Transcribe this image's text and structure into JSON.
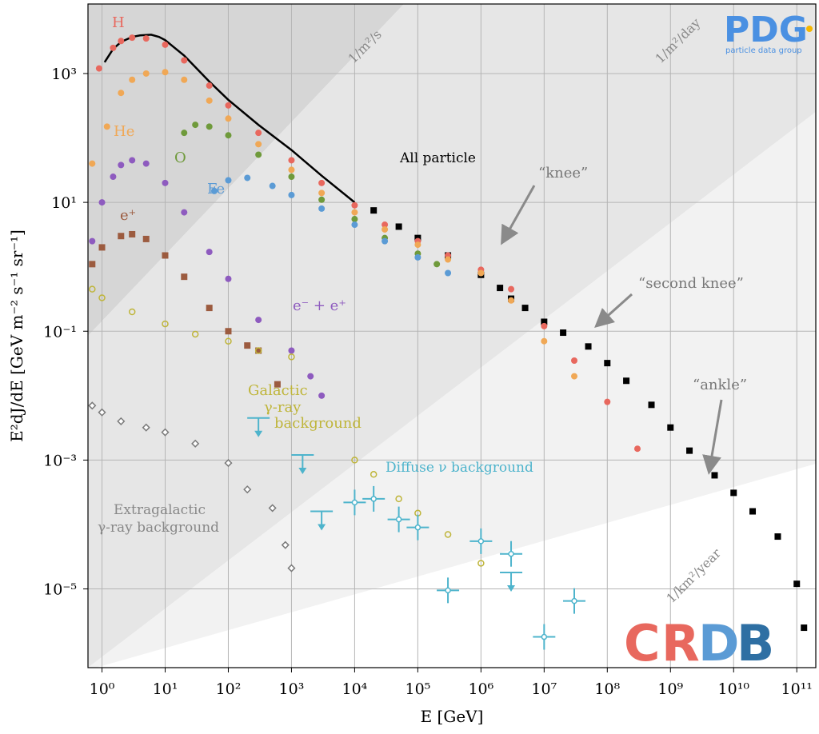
{
  "chart_data": {
    "type": "scatter",
    "xlabel": "E [GeV]",
    "ylabel": "E²dJ/dE [GeV m⁻² s⁻¹ sr⁻¹]",
    "xscale": "log",
    "yscale": "log",
    "xlim": [
      0.6,
      200000000000.0
    ],
    "ylim": [
      6e-07,
      12000
    ],
    "grid": true,
    "x_ticks": [
      {
        "v": 1,
        "label": "10⁰"
      },
      {
        "v": 10,
        "label": "10¹"
      },
      {
        "v": 100,
        "label": "10²"
      },
      {
        "v": 1000,
        "label": "10³"
      },
      {
        "v": 10000,
        "label": "10⁴"
      },
      {
        "v": 100000,
        "label": "10⁵"
      },
      {
        "v": 1000000,
        "label": "10⁶"
      },
      {
        "v": 10000000,
        "label": "10⁷"
      },
      {
        "v": 100000000,
        "label": "10⁸"
      },
      {
        "v": 1000000000,
        "label": "10⁹"
      },
      {
        "v": 10000000000,
        "label": "10¹⁰"
      },
      {
        "v": 100000000000,
        "label": "10¹¹"
      }
    ],
    "y_ticks": [
      {
        "v": 1000,
        "label": "10³"
      },
      {
        "v": 10,
        "label": "10¹"
      },
      {
        "v": 0.1,
        "label": "10⁻¹"
      },
      {
        "v": 0.001,
        "label": "10⁻³"
      },
      {
        "v": 1e-05,
        "label": "10⁻⁵"
      }
    ],
    "flux_bands": [
      {
        "label": "1/m²/s",
        "color": "#d6d6d6",
        "label_at": [
          12000,
          1200
        ]
      },
      {
        "label": "1/m²/day",
        "color": "#e6e6e6",
        "label_at": [
          2500000000.0,
          1400
        ]
      },
      {
        "label": "1/km²/year",
        "color": "#f2f2f2",
        "label_at": [
          30000000000.0,
          1e-05
        ]
      }
    ],
    "series": [
      {
        "name": "All particle",
        "color": "#000000",
        "marker": "square",
        "line": [
          [
            1.1,
            1500
          ],
          [
            1.5,
            2400
          ],
          [
            2,
            3100
          ],
          [
            3,
            3700
          ],
          [
            4,
            3900
          ],
          [
            6,
            4000
          ],
          [
            8,
            3700
          ],
          [
            10,
            3300
          ],
          [
            20,
            1900
          ],
          [
            50,
            750
          ],
          [
            100,
            390
          ],
          [
            300,
            160
          ],
          [
            1000,
            65
          ],
          [
            3000,
            26
          ],
          [
            10000,
            10
          ]
        ],
        "points": [
          [
            20000,
            7.5
          ],
          [
            50000,
            4.2
          ],
          [
            100000,
            2.8
          ],
          [
            300000,
            1.5
          ],
          [
            1000000,
            0.75
          ],
          [
            2000000,
            0.47
          ],
          [
            3000000,
            0.32
          ],
          [
            5000000,
            0.23
          ],
          [
            10000000,
            0.14
          ],
          [
            20000000,
            0.095
          ],
          [
            50000000,
            0.058
          ],
          [
            100000000,
            0.032
          ],
          [
            200000000,
            0.017
          ],
          [
            500000000,
            0.0072
          ],
          [
            1000000000,
            0.0032
          ],
          [
            2000000000,
            0.0014
          ],
          [
            5000000000,
            0.00058
          ],
          [
            10000000000,
            0.00031
          ],
          [
            20000000000,
            0.00016
          ],
          [
            50000000000,
            6.5e-05
          ],
          [
            100000000000,
            1.2e-05
          ],
          [
            130000000000,
            2.5e-06
          ]
        ]
      },
      {
        "name": "H",
        "color": "#e8685e",
        "marker": "circle",
        "points": [
          [
            0.9,
            1200
          ],
          [
            1.5,
            2500
          ],
          [
            2,
            3200
          ],
          [
            3,
            3600
          ],
          [
            5,
            3500
          ],
          [
            10,
            2800
          ],
          [
            20,
            1600
          ],
          [
            50,
            650
          ],
          [
            100,
            320
          ],
          [
            300,
            120
          ],
          [
            1000,
            45
          ],
          [
            3000,
            20
          ],
          [
            10000,
            9
          ],
          [
            30000,
            4.5
          ],
          [
            100000,
            2.5
          ],
          [
            300000,
            1.5
          ],
          [
            1000000,
            0.9
          ],
          [
            3000000,
            0.45
          ],
          [
            10000000,
            0.12
          ],
          [
            30000000,
            0.035
          ],
          [
            100000000,
            0.008
          ],
          [
            300000000,
            0.0015
          ]
        ]
      },
      {
        "name": "He",
        "color": "#f0a856",
        "marker": "circle",
        "points": [
          [
            0.7,
            40
          ],
          [
            1.2,
            150
          ],
          [
            2,
            500
          ],
          [
            3,
            800
          ],
          [
            5,
            1000
          ],
          [
            10,
            1050
          ],
          [
            20,
            800
          ],
          [
            50,
            380
          ],
          [
            100,
            200
          ],
          [
            300,
            80
          ],
          [
            1000,
            32
          ],
          [
            3000,
            14
          ],
          [
            10000,
            7
          ],
          [
            30000,
            3.8
          ],
          [
            100000,
            2.2
          ],
          [
            300000,
            1.3
          ],
          [
            1000000,
            0.8
          ],
          [
            3000000,
            0.3
          ],
          [
            10000000,
            0.07
          ],
          [
            30000000,
            0.02
          ]
        ]
      },
      {
        "name": "O",
        "color": "#6f9a3b",
        "marker": "circle",
        "points": [
          [
            20,
            120
          ],
          [
            30,
            160
          ],
          [
            50,
            150
          ],
          [
            100,
            110
          ],
          [
            300,
            55
          ],
          [
            1000,
            25
          ],
          [
            3000,
            11
          ],
          [
            10000,
            5.5
          ],
          [
            30000,
            2.8
          ],
          [
            100000,
            1.6
          ],
          [
            200000,
            1.1
          ]
        ]
      },
      {
        "name": "Fe",
        "color": "#5b9bd5",
        "marker": "circle",
        "points": [
          [
            60,
            15
          ],
          [
            100,
            22
          ],
          [
            200,
            24
          ],
          [
            500,
            18
          ],
          [
            1000,
            13
          ],
          [
            3000,
            8
          ],
          [
            10000,
            4.5
          ],
          [
            30000,
            2.5
          ],
          [
            100000,
            1.4
          ],
          [
            300000,
            0.8
          ]
        ]
      },
      {
        "name": "e⁻ + e⁺",
        "color": "#8e5bbf",
        "marker": "circle",
        "points": [
          [
            0.7,
            2.5
          ],
          [
            1,
            10
          ],
          [
            1.5,
            25
          ],
          [
            2,
            38
          ],
          [
            3,
            45
          ],
          [
            5,
            40
          ],
          [
            10,
            20
          ],
          [
            20,
            7
          ],
          [
            50,
            1.7
          ],
          [
            100,
            0.65
          ],
          [
            300,
            0.15
          ],
          [
            1000,
            0.05
          ],
          [
            2000,
            0.02
          ],
          [
            3000,
            0.01
          ]
        ]
      },
      {
        "name": "e⁺",
        "color": "#9c5b3f",
        "marker": "square",
        "points": [
          [
            0.7,
            1.1
          ],
          [
            1,
            2
          ],
          [
            2,
            3
          ],
          [
            3,
            3.2
          ],
          [
            5,
            2.7
          ],
          [
            10,
            1.5
          ],
          [
            20,
            0.7
          ],
          [
            50,
            0.23
          ],
          [
            100,
            0.1
          ],
          [
            200,
            0.06
          ],
          [
            300,
            0.05
          ],
          [
            600,
            0.015
          ]
        ]
      },
      {
        "name": "Galactic γ-ray background",
        "color": "#bfb53a",
        "marker": "open-circle",
        "points": [
          [
            0.7,
            0.45
          ],
          [
            1,
            0.33
          ],
          [
            3,
            0.2
          ],
          [
            10,
            0.13
          ],
          [
            30,
            0.09
          ],
          [
            100,
            0.07
          ],
          [
            300,
            0.05
          ],
          [
            1000,
            0.04
          ],
          [
            10000,
            0.001
          ],
          [
            20000,
            0.0006
          ],
          [
            50000,
            0.00025
          ],
          [
            100000,
            0.00015
          ],
          [
            300000,
            7e-05
          ],
          [
            1000000,
            2.5e-05
          ]
        ]
      },
      {
        "name": "Extragalactic γ-ray background",
        "color": "#7a7a7a",
        "marker": "open-diamond",
        "points": [
          [
            0.7,
            0.007
          ],
          [
            1,
            0.0055
          ],
          [
            2,
            0.004
          ],
          [
            5,
            0.0032
          ],
          [
            10,
            0.0027
          ],
          [
            30,
            0.0018
          ],
          [
            100,
            0.0009
          ],
          [
            200,
            0.00035
          ],
          [
            500,
            0.00018
          ],
          [
            800,
            4.8e-05
          ],
          [
            1000,
            2.1e-05
          ]
        ]
      },
      {
        "name": "Diffuse ν background",
        "color": "#4eb4cc",
        "marker": "plus",
        "points": [
          [
            10000,
            0.00022
          ],
          [
            20000,
            0.00025
          ],
          [
            50000,
            0.00012
          ],
          [
            100000,
            9e-05
          ],
          [
            300000,
            9.5e-06
          ],
          [
            1000000,
            5.5e-05
          ],
          [
            3000000,
            3.5e-05
          ],
          [
            10000000,
            1.8e-06
          ],
          [
            30000000,
            6.5e-06
          ]
        ],
        "upper_limits": [
          [
            300,
            0.0045
          ],
          [
            1500,
            0.0012
          ],
          [
            3000,
            0.00016
          ],
          [
            3000000,
            1.8e-05
          ]
        ]
      }
    ],
    "annotations": [
      {
        "text": "“knee”",
        "at": [
          5000000,
          0.0031
        ]
      },
      {
        "text": "“second knee”",
        "at": [
          80000000,
          0.2
        ]
      },
      {
        "text": "“ankle”",
        "at": [
          6000000000,
          0.00042
        ]
      }
    ]
  },
  "labels": {
    "h": "H",
    "he": "He",
    "o": "O",
    "fe": "Fe",
    "all": "All particle",
    "eplus": "e⁺",
    "eboth": "e⁻ + e⁺",
    "galactic1": "Galactic",
    "galactic2": "γ-ray",
    "galactic3": "background",
    "extragal1": "Extragalactic",
    "extragal2": "γ-ray background",
    "nu": "Diffuse ν background",
    "knee": "“knee”",
    "secondknee": "“second knee”",
    "ankle": "“ankle”",
    "band1": "1/m²/s",
    "band2": "1/m²/day",
    "band3": "1/km²/year"
  },
  "logos": {
    "pdg_main": "PDG",
    "pdg_sub": "particle data group",
    "crdb": [
      "C",
      "R",
      "D",
      "B"
    ],
    "crdb_colors": [
      "#e8685e",
      "#e8685e",
      "#5b9bd5",
      "#5b9bd5"
    ]
  }
}
